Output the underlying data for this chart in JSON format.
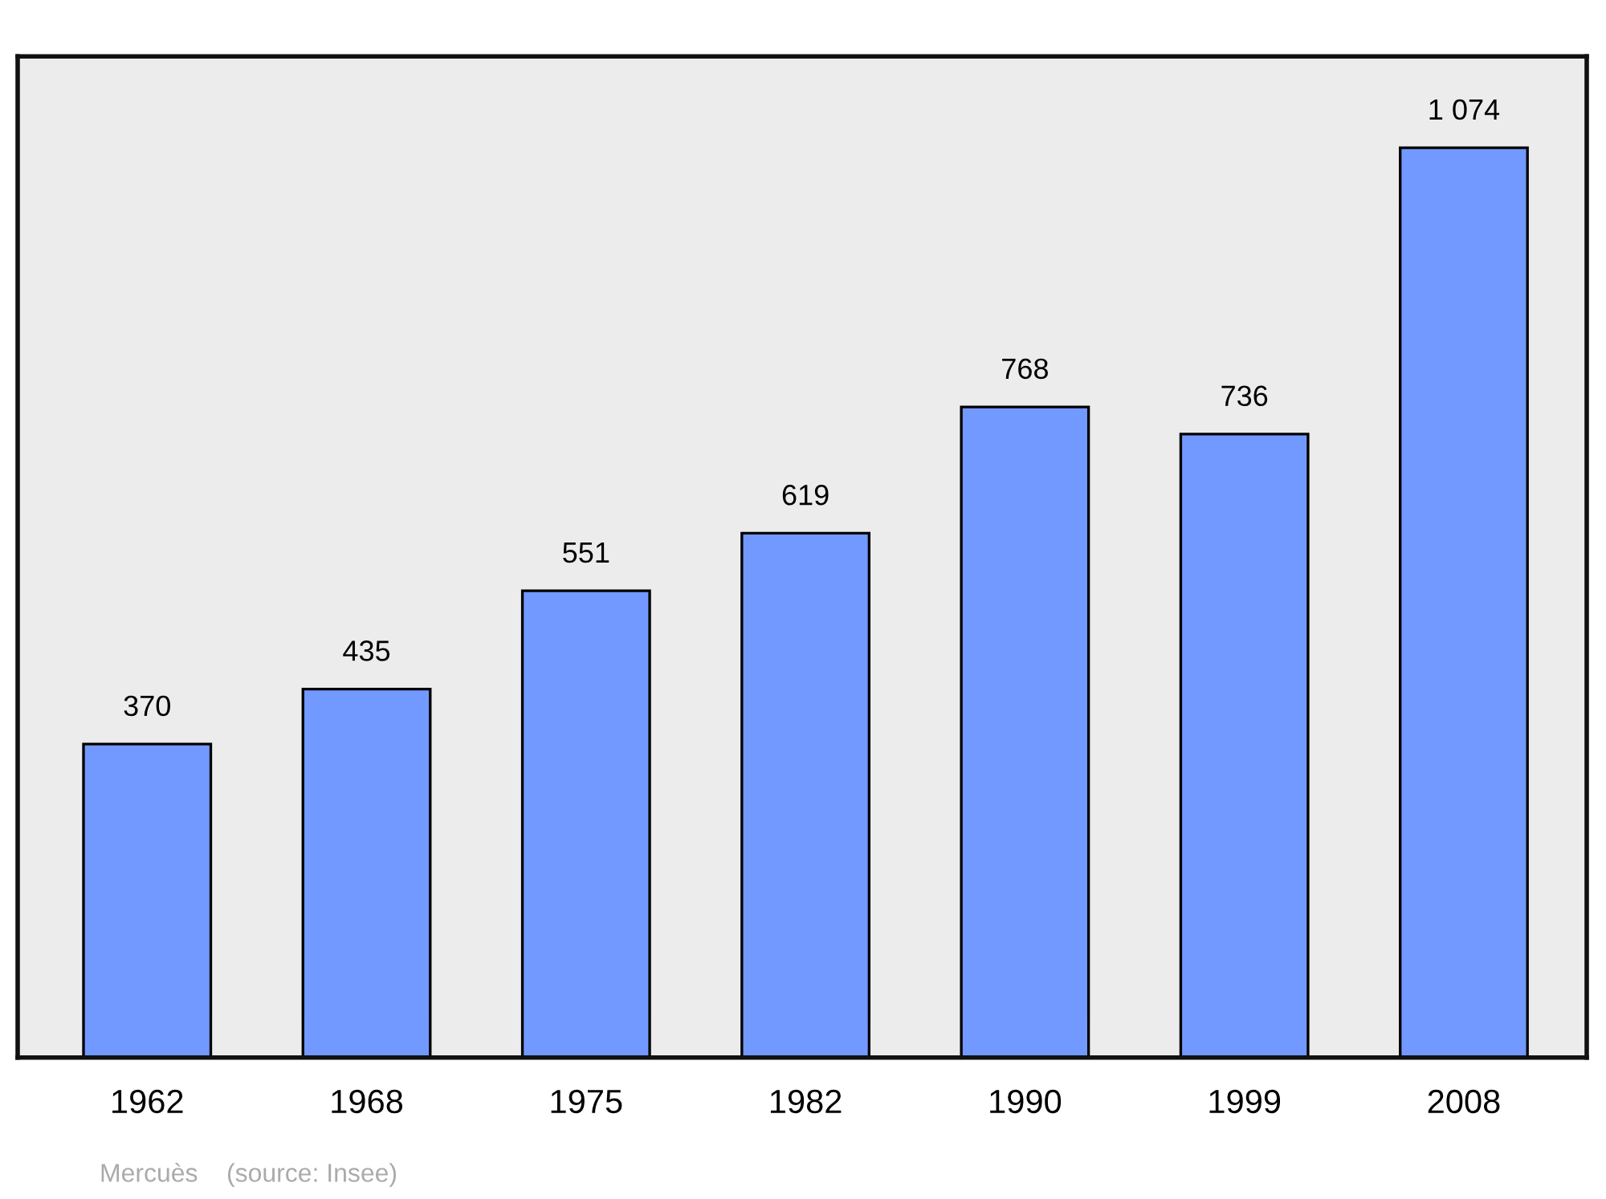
{
  "chart_data": {
    "type": "bar",
    "categories": [
      "1962",
      "1968",
      "1975",
      "1982",
      "1990",
      "1999",
      "2008"
    ],
    "values": [
      370,
      435,
      551,
      619,
      768,
      736,
      1074
    ],
    "value_labels": [
      "370",
      "435",
      "551",
      "619",
      "768",
      "736",
      "1 074"
    ],
    "color": "#7299ff",
    "ylim": [
      0,
      1182
    ],
    "tick_labels": "x",
    "grid": false,
    "annotations": [
      "Mercuès    (source: Insee)"
    ]
  }
}
